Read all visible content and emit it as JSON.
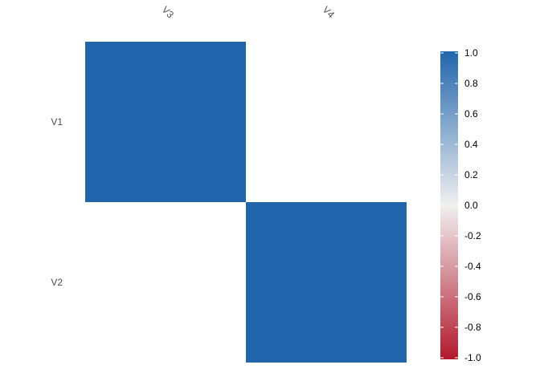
{
  "chart_data": {
    "type": "heatmap",
    "title": "",
    "xlabel": "",
    "ylabel": "",
    "x_categories": [
      "V3",
      "V4"
    ],
    "y_categories": [
      "V1",
      "V2"
    ],
    "values": [
      [
        1.0,
        null
      ],
      [
        null,
        1.0
      ]
    ],
    "x_axis_position": "top",
    "grid": false,
    "legend": {
      "position": "right",
      "range": [
        -1.0,
        1.0
      ],
      "ticks": [
        "1.0",
        "0.8",
        "0.6",
        "0.4",
        "0.2",
        "0.0",
        "-0.2",
        "-0.4",
        "-0.6",
        "-0.8",
        "-1.0"
      ],
      "tick_values": [
        1.0,
        0.8,
        0.6,
        0.4,
        0.2,
        0.0,
        -0.2,
        -0.4,
        -0.6,
        -0.8,
        -1.0
      ],
      "colors": {
        "low": "#B2182B",
        "mid": "#F0F0F0",
        "high": "#2166AC"
      }
    }
  }
}
